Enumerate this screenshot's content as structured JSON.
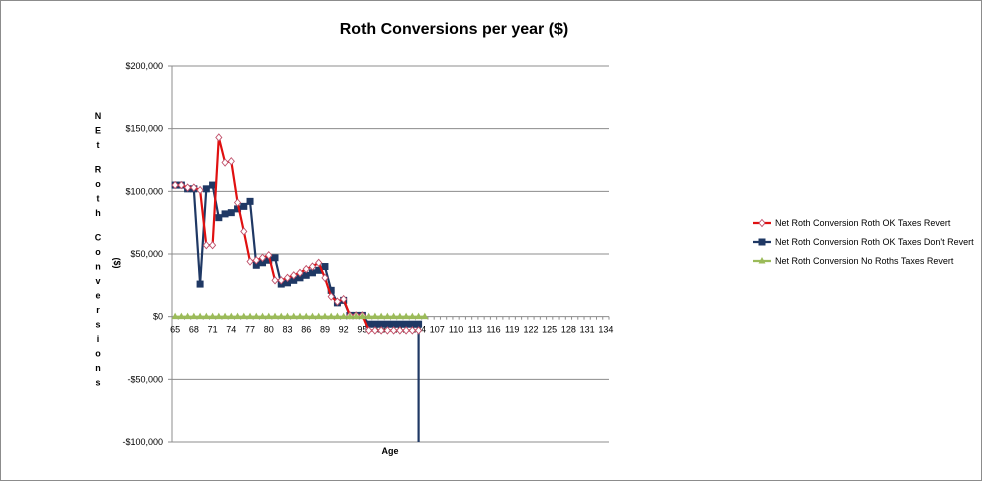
{
  "chart_data": {
    "type": "line",
    "title": "Roth Conversions per year ($)",
    "xlabel": "Age",
    "ylabel": "NEt Roth Conversions ($)",
    "ylim": [
      -100000,
      200000
    ],
    "yticks": [
      200000,
      150000,
      100000,
      50000,
      0,
      -50000,
      -100000
    ],
    "ytick_labels": [
      "$200,000",
      "$150,000",
      "$100,000",
      "$50,000",
      "$0",
      "-$50,000",
      "-$100,000"
    ],
    "x_min": 65,
    "x_max": 135,
    "x_ticks": [
      65,
      68,
      71,
      74,
      77,
      80,
      83,
      86,
      89,
      92,
      95,
      98,
      101,
      104,
      107,
      110,
      113,
      116,
      119,
      122,
      125,
      128,
      131,
      134
    ],
    "x_tick_labels": [
      "65",
      "68",
      "71",
      "74",
      "77",
      "80",
      "83",
      "86",
      "89",
      "92",
      "95",
      "98",
      "101",
      "104",
      "107",
      "110",
      "113",
      "116",
      "119",
      "122",
      "125",
      "128",
      "131",
      "134"
    ],
    "grid": true,
    "legend_position": "right",
    "series": [
      {
        "name": "Net Roth Conversion Roth OK Taxes Revert",
        "color": "#e01010",
        "marker": "diamond-open",
        "x": [
          65,
          66,
          67,
          68,
          69,
          70,
          71,
          72,
          73,
          74,
          75,
          76,
          77,
          78,
          79,
          80,
          81,
          82,
          83,
          84,
          85,
          86,
          87,
          88,
          89,
          90,
          91,
          92,
          93,
          94,
          95,
          96,
          97,
          98,
          99,
          100,
          101,
          102,
          103,
          104
        ],
        "y": [
          105000,
          105000,
          103000,
          103000,
          101000,
          57000,
          57000,
          143000,
          123000,
          124000,
          91000,
          68000,
          44000,
          45000,
          47000,
          49000,
          29000,
          29000,
          31000,
          33000,
          35000,
          38000,
          40000,
          43000,
          31000,
          16000,
          12000,
          14000,
          1000,
          1000,
          1000,
          -11000,
          -11000,
          -11000,
          -11000,
          -11000,
          -11000,
          -11000,
          -11000,
          -11000
        ]
      },
      {
        "name": "Net Roth Conversion Roth OK Taxes Don't Revert",
        "color": "#1f3864",
        "marker": "square",
        "x": [
          65,
          66,
          67,
          68,
          69,
          70,
          71,
          72,
          73,
          74,
          75,
          76,
          77,
          78,
          79,
          80,
          81,
          82,
          83,
          84,
          85,
          86,
          87,
          88,
          89,
          90,
          91,
          92,
          93,
          94,
          95,
          96,
          97,
          98,
          99,
          100,
          101,
          102,
          103,
          104,
          104
        ],
        "y": [
          105000,
          105000,
          102000,
          102000,
          26000,
          102000,
          105000,
          79000,
          82000,
          83000,
          86000,
          88000,
          92000,
          41000,
          43000,
          45000,
          47000,
          26000,
          27000,
          29000,
          31000,
          33000,
          35000,
          37000,
          40000,
          21000,
          11000,
          13000,
          1000,
          1000,
          1000,
          -6000,
          -6000,
          -6000,
          -6000,
          -6000,
          -6000,
          -6000,
          -6000,
          -6000,
          -100000
        ]
      },
      {
        "name": "Net Roth Conversion No Roths Taxes Revert",
        "color": "#9bbb59",
        "marker": "triangle",
        "x": [
          65,
          66,
          67,
          68,
          69,
          70,
          71,
          72,
          73,
          74,
          75,
          76,
          77,
          78,
          79,
          80,
          81,
          82,
          83,
          84,
          85,
          86,
          87,
          88,
          89,
          90,
          91,
          92,
          93,
          94,
          95,
          96,
          97,
          98,
          99,
          100,
          101,
          102,
          103,
          104,
          105
        ],
        "y": [
          0,
          0,
          0,
          0,
          0,
          0,
          0,
          0,
          0,
          0,
          0,
          0,
          0,
          0,
          0,
          0,
          0,
          0,
          0,
          0,
          0,
          0,
          0,
          0,
          0,
          0,
          0,
          0,
          0,
          0,
          0,
          0,
          0,
          0,
          0,
          0,
          0,
          0,
          0,
          0,
          0
        ]
      }
    ]
  }
}
